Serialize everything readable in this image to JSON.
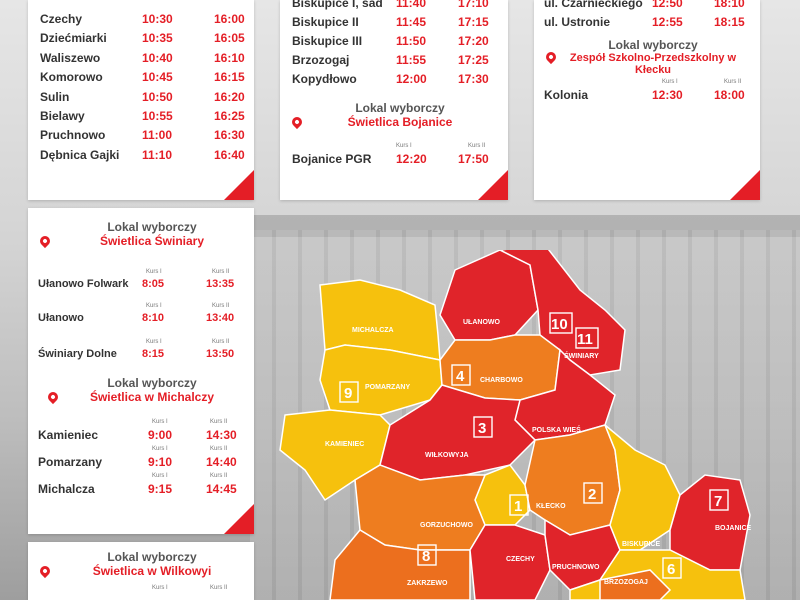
{
  "colors": {
    "accent": "#e41e26",
    "red": "#e0242a",
    "orange": "#ee7d1f",
    "yellow": "#f6c10d",
    "deep_orange": "#ec6f1e"
  },
  "card_top_left": {
    "rows": [
      {
        "name": "Czechy",
        "t1": "10:30",
        "t2": "16:00"
      },
      {
        "name": "Dziećmiarki",
        "t1": "10:35",
        "t2": "16:05"
      },
      {
        "name": "Waliszewo",
        "t1": "10:40",
        "t2": "16:10"
      },
      {
        "name": "Komorowo",
        "t1": "10:45",
        "t2": "16:15"
      },
      {
        "name": "Sulin",
        "t1": "10:50",
        "t2": "16:20"
      },
      {
        "name": "Bielawy",
        "t1": "10:55",
        "t2": "16:25"
      },
      {
        "name": "Pruchnowo",
        "t1": "11:00",
        "t2": "16:30"
      },
      {
        "name": "Dębnica Gajki",
        "t1": "11:10",
        "t2": "16:40"
      }
    ]
  },
  "card_top_mid": {
    "rows": [
      {
        "name": "Biskupice I, sad",
        "t1": "11:40",
        "t2": "17:10"
      },
      {
        "name": "Biskupice II",
        "t1": "11:45",
        "t2": "17:15"
      },
      {
        "name": "Biskupice III",
        "t1": "11:50",
        "t2": "17:20"
      },
      {
        "name": "Brzozogaj",
        "t1": "11:55",
        "t2": "17:25"
      },
      {
        "name": "Kopydłowo",
        "t1": "12:00",
        "t2": "17:30"
      }
    ],
    "lokal_label": "Lokal wyborczy",
    "lokal_place": "Świetlica Bojanice",
    "kurs1": "Kurs I",
    "kurs2": "Kurs II",
    "row2": {
      "name": "Bojanice PGR",
      "t1": "12:20",
      "t2": "17:50"
    }
  },
  "card_top_right": {
    "rows": [
      {
        "name": "ul. Czarnieckiego",
        "t1": "12:50",
        "t2": "18:10"
      },
      {
        "name": "ul. Ustronie",
        "t1": "12:55",
        "t2": "18:15"
      }
    ],
    "lokal_label": "Lokal wyborczy",
    "lokal_place": "Zespół Szkolno-Przedszkolny w Kłecku",
    "kurs1": "Kurs I",
    "kurs2": "Kurs II",
    "row2": {
      "name": "Kolonia",
      "t1": "12:30",
      "t2": "18:00"
    }
  },
  "card_mid_left": {
    "lokal1_label": "Lokal wyborczy",
    "lokal1_place": "Świetlica Świniary",
    "kurs1": "Kurs I",
    "kurs2": "Kurs II",
    "rows1": [
      {
        "name": "Ułanowo Folwark",
        "t1": "8:05",
        "t2": "13:35"
      },
      {
        "name": "Ułanowo",
        "t1": "8:10",
        "t2": "13:40"
      },
      {
        "name": "Świniary Dolne",
        "t1": "8:15",
        "t2": "13:50"
      }
    ],
    "lokal2_label": "Lokal wyborczy",
    "lokal2_place": "Świetlica w Michalczy",
    "rows2": [
      {
        "name": "Kamieniec",
        "t1": "9:00",
        "t2": "14:30"
      },
      {
        "name": "Pomarzany",
        "t1": "9:10",
        "t2": "14:40"
      },
      {
        "name": "Michalcza",
        "t1": "9:15",
        "t2": "14:45"
      }
    ]
  },
  "card_bottom_left": {
    "lokal_label": "Lokal wyborczy",
    "lokal_place": "Świetlica w Wilkowyi",
    "kurs1": "Kurs I",
    "kurs2": "Kurs II"
  },
  "map": {
    "regions": [
      {
        "label": "MICHALCZA"
      },
      {
        "label": "POMARZANY"
      },
      {
        "label": "KAMIENIEC"
      },
      {
        "label": "UŁANOWO"
      },
      {
        "label": "CHARBOWO"
      },
      {
        "label": "ŚWINIARY"
      },
      {
        "label": "POLSKA WIEŚ"
      },
      {
        "label": "WIŁKOWYJA"
      },
      {
        "label": "KŁECKO"
      },
      {
        "label": "GORZUCHOWO"
      },
      {
        "label": "ZAKRZEWO"
      },
      {
        "label": "CZECHY"
      },
      {
        "label": "PRUCHNOWO"
      },
      {
        "label": "BISKUPICE"
      },
      {
        "label": "BOJANICE"
      },
      {
        "label": "BRZOZOGAJ"
      }
    ],
    "numbers": [
      "1",
      "2",
      "3",
      "4",
      "6",
      "7",
      "8",
      "9",
      "10",
      "11"
    ]
  }
}
